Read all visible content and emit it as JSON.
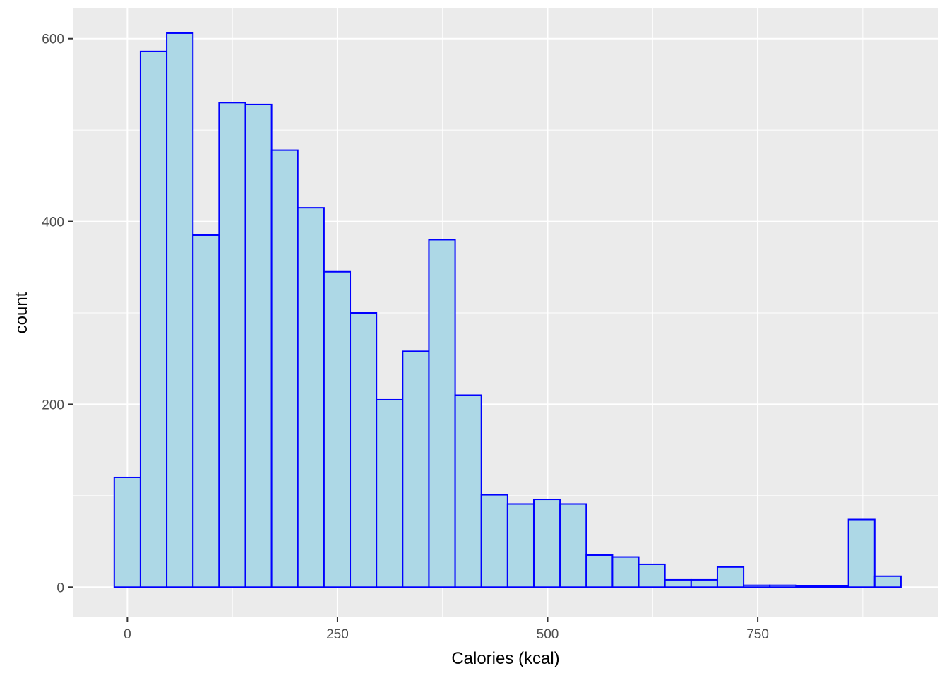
{
  "chart_data": {
    "type": "histogram",
    "xlabel": "Calories (kcal)",
    "ylabel": "count",
    "xlim": [
      -65,
      965
    ],
    "ylim": [
      -33,
      633
    ],
    "x_ticks": [
      0,
      250,
      500,
      750
    ],
    "y_ticks": [
      0,
      200,
      400,
      600
    ],
    "grid": true,
    "colors": {
      "panel_bg": "#EBEBEB",
      "grid": "#FFFFFF",
      "bar_fill": "#ADD8E6",
      "bar_outline": "#0000FF"
    },
    "bins": [
      {
        "x0": -15.6,
        "x1": 15.6,
        "count": 120
      },
      {
        "x0": 15.6,
        "x1": 46.8,
        "count": 586
      },
      {
        "x0": 46.8,
        "x1": 78.0,
        "count": 606
      },
      {
        "x0": 78.0,
        "x1": 109.2,
        "count": 385
      },
      {
        "x0": 109.2,
        "x1": 140.4,
        "count": 530
      },
      {
        "x0": 140.4,
        "x1": 171.6,
        "count": 528
      },
      {
        "x0": 171.6,
        "x1": 202.8,
        "count": 478
      },
      {
        "x0": 202.8,
        "x1": 234.0,
        "count": 415
      },
      {
        "x0": 234.0,
        "x1": 265.2,
        "count": 345
      },
      {
        "x0": 265.2,
        "x1": 296.4,
        "count": 300
      },
      {
        "x0": 296.4,
        "x1": 327.6,
        "count": 205
      },
      {
        "x0": 327.6,
        "x1": 358.8,
        "count": 258
      },
      {
        "x0": 358.8,
        "x1": 390.0,
        "count": 380
      },
      {
        "x0": 390.0,
        "x1": 421.2,
        "count": 210
      },
      {
        "x0": 421.2,
        "x1": 452.4,
        "count": 101
      },
      {
        "x0": 452.4,
        "x1": 483.6,
        "count": 91
      },
      {
        "x0": 483.6,
        "x1": 514.8,
        "count": 96
      },
      {
        "x0": 514.8,
        "x1": 546.0,
        "count": 91
      },
      {
        "x0": 546.0,
        "x1": 577.2,
        "count": 35
      },
      {
        "x0": 577.2,
        "x1": 608.4,
        "count": 33
      },
      {
        "x0": 608.4,
        "x1": 639.6,
        "count": 25
      },
      {
        "x0": 639.6,
        "x1": 670.8,
        "count": 8
      },
      {
        "x0": 670.8,
        "x1": 702.0,
        "count": 8
      },
      {
        "x0": 702.0,
        "x1": 733.2,
        "count": 22
      },
      {
        "x0": 733.2,
        "x1": 764.4,
        "count": 2
      },
      {
        "x0": 764.4,
        "x1": 795.6,
        "count": 2
      },
      {
        "x0": 795.6,
        "x1": 826.8,
        "count": 1
      },
      {
        "x0": 826.8,
        "x1": 858.0,
        "count": 1
      },
      {
        "x0": 858.0,
        "x1": 889.2,
        "count": 74
      },
      {
        "x0": 889.2,
        "x1": 920.4,
        "count": 12
      }
    ]
  }
}
